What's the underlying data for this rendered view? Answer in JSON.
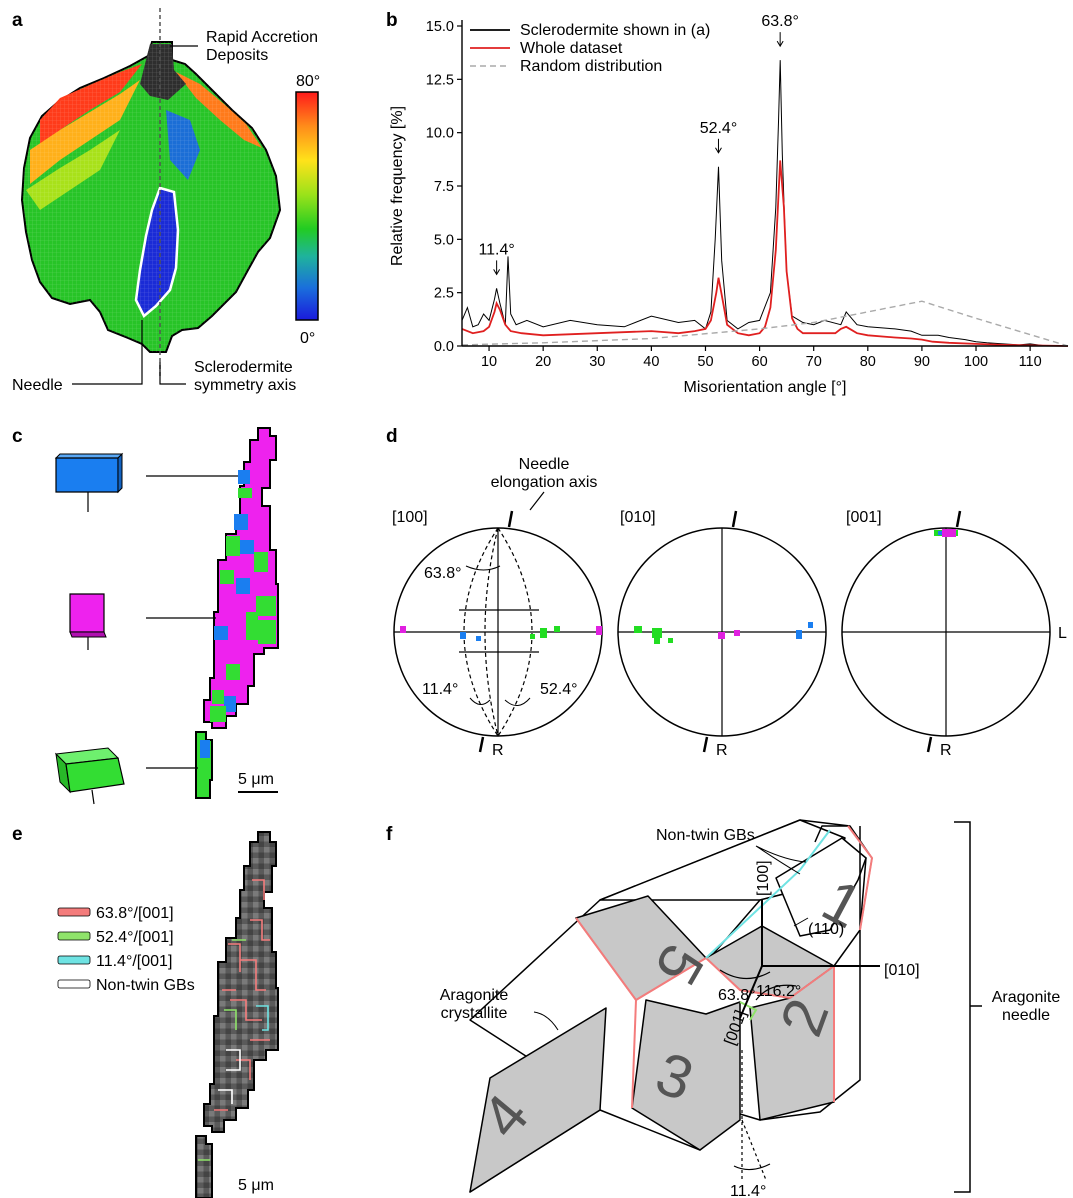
{
  "panel_letters": {
    "a": "a",
    "b": "b",
    "c": "c",
    "d": "d",
    "e": "e",
    "f": "f"
  },
  "panel_a": {
    "rad_line1": "Rapid Accretion",
    "rad_line2": "Deposits",
    "scale_max": "80°",
    "scale_min": "0°",
    "needle": "Needle",
    "axis_line1": "Sclerodermite",
    "axis_line2": "symmetry axis",
    "colormap": [
      "#ff1a1a",
      "#ff8c1a",
      "#ffe21a",
      "#9be21a",
      "#22cc22",
      "#1fb39c",
      "#1a6edc",
      "#1a1adc"
    ]
  },
  "chart_data": {
    "type": "line",
    "title": "",
    "xlabel": "Misorientation angle [°]",
    "ylabel": "Relative frequency [%]",
    "xlim": [
      5,
      117
    ],
    "ylim": [
      0,
      15
    ],
    "x_ticks": [
      10,
      20,
      30,
      40,
      50,
      60,
      70,
      80,
      90,
      100,
      110
    ],
    "y_ticks": [
      0,
      2.5,
      5,
      7.5,
      10,
      12.5,
      15
    ],
    "y_tick_labels": [
      "0.0",
      "2.5",
      "5.0",
      "7.5",
      "10.0",
      "12.5",
      "15.0"
    ],
    "legend_position": "top-left",
    "series": [
      {
        "name": "Sclerodermite shown in (a)",
        "color": "#000000",
        "style": "solid",
        "x": [
          5,
          6,
          7,
          8,
          9,
          10,
          11,
          11.4,
          12,
          13,
          13.5,
          14,
          15,
          17,
          20,
          25,
          30,
          35,
          40,
          45,
          48,
          50,
          51,
          51.8,
          52.4,
          53,
          54,
          56,
          58,
          60,
          62,
          63,
          63.5,
          63.8,
          64.2,
          64.6,
          65,
          66,
          68,
          70,
          72,
          75,
          76,
          78,
          80,
          85,
          88,
          90,
          93,
          95,
          98,
          100,
          102,
          105,
          108,
          110,
          113,
          117
        ],
        "y": [
          1.2,
          1.8,
          0.9,
          1.0,
          1.5,
          1.2,
          2.2,
          2.7,
          2.0,
          1.0,
          4.2,
          1.5,
          1.0,
          1.2,
          0.9,
          1.2,
          1.0,
          0.9,
          1.4,
          1.1,
          1.2,
          0.8,
          1.6,
          5.0,
          8.4,
          4.0,
          1.2,
          0.8,
          1.1,
          1.2,
          2.5,
          6.5,
          10.5,
          13.4,
          9.0,
          6.0,
          3.5,
          1.4,
          1.1,
          1.0,
          1.2,
          1.0,
          1.6,
          1.0,
          0.9,
          0.8,
          0.7,
          0.5,
          0.5,
          0.4,
          0.3,
          0.2,
          0.15,
          0.1,
          0.05,
          0.1,
          0,
          0
        ]
      },
      {
        "name": "Whole dataset",
        "color": "#e02020",
        "style": "solid",
        "x": [
          5,
          7,
          9,
          10,
          11,
          11.4,
          12,
          13,
          14,
          16,
          20,
          30,
          40,
          45,
          48,
          50,
          51,
          52,
          52.4,
          53,
          54,
          56,
          58,
          60,
          61,
          62,
          63,
          63.8,
          64.5,
          65,
          66,
          67,
          68,
          70,
          72,
          74,
          75,
          76,
          78,
          80,
          85,
          88,
          90,
          92,
          95,
          100,
          105,
          110,
          117
        ],
        "y": [
          0.8,
          0.6,
          0.7,
          0.9,
          1.6,
          2.0,
          1.7,
          1.0,
          0.7,
          0.6,
          0.5,
          0.6,
          0.7,
          0.6,
          0.7,
          0.8,
          1.2,
          2.5,
          3.2,
          2.4,
          1.0,
          0.6,
          0.5,
          0.6,
          0.9,
          1.8,
          4.5,
          8.7,
          6.5,
          3.5,
          1.3,
          0.8,
          0.6,
          0.6,
          0.6,
          0.6,
          0.8,
          0.9,
          0.6,
          0.5,
          0.4,
          0.35,
          0.3,
          0.2,
          0.15,
          0.1,
          0.05,
          0.03,
          0
        ]
      },
      {
        "name": "Random distribution",
        "color": "#aaaaaa",
        "style": "dashed",
        "x": [
          5,
          20,
          40,
          60,
          70,
          80,
          90,
          100,
          117
        ],
        "y": [
          0.05,
          0.15,
          0.35,
          0.8,
          1.1,
          1.6,
          2.1,
          1.3,
          0
        ]
      }
    ],
    "annotations": [
      {
        "x": 11.4,
        "label": "11.4°"
      },
      {
        "x": 52.4,
        "label": "52.4°"
      },
      {
        "x": 63.8,
        "label": "63.8°"
      }
    ]
  },
  "panel_c": {
    "scale": "5 μm"
  },
  "panel_d": {
    "needle_line1": "Needle",
    "needle_line2": "elongation axis",
    "pole_labels": [
      "[100]",
      "[010]",
      "[001]"
    ],
    "R": "R",
    "L": "L",
    "angles": {
      "a638": "63.8°",
      "a114": "11.4°",
      "a524": "52.4°"
    }
  },
  "panel_e": {
    "legend": [
      {
        "label": "63.8°/[001]",
        "color": "#f47c7c"
      },
      {
        "label": "52.4°/[001]",
        "color": "#8fe36a"
      },
      {
        "label": "11.4°/[001]",
        "color": "#6fe3e3"
      },
      {
        "label": "Non-twin GBs",
        "color": "#ffffff"
      }
    ],
    "scale": "5 μm"
  },
  "panel_f": {
    "nontwin": "Non-twin GBs",
    "ax100": "[100]",
    "ax010": "[010]",
    "ax001": "[001]",
    "plane110": "(110)",
    "ang638": "63.8°",
    "ang1162": "116.2°",
    "ang114": "11.4°",
    "crystallite_line1": "Aragonite",
    "crystallite_line2": "crystallite",
    "needle_line1": "Aragonite",
    "needle_line2": "needle",
    "nums": [
      "1",
      "2",
      "3",
      "4",
      "5"
    ]
  }
}
